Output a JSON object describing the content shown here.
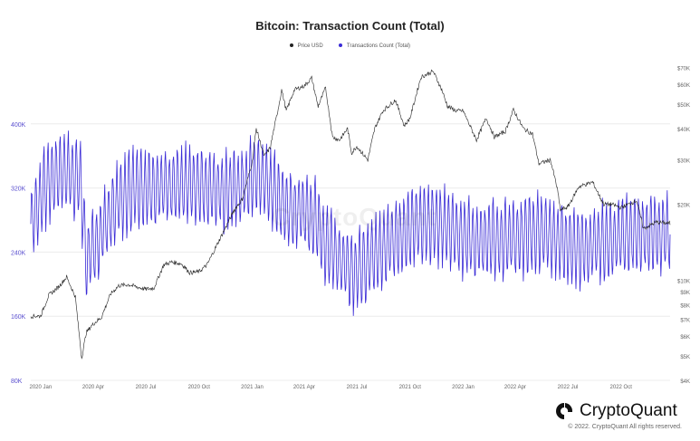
{
  "header": {
    "title": "Bitcoin: Transaction Count (Total)"
  },
  "legend": {
    "price_label": "Price USD",
    "tx_label": "Transactions Count (Total)"
  },
  "branding": {
    "logo_text": "CryptoQuant",
    "watermark": "CryptoQuant",
    "copyright": "© 2022. CryptoQuant All rights reserved."
  },
  "colors": {
    "price": "#222222",
    "transactions": "#3a2bd6",
    "left_axis_text": "#5a4fcf",
    "grid": "#ececec"
  },
  "chart_data": {
    "type": "line",
    "title": "Bitcoin: Transaction Count (Total)",
    "grid": true,
    "legend_position": "top-center",
    "x_ticks": [
      "2020 Jan",
      "2020 Apr",
      "2020 Jul",
      "2020 Oct",
      "2021 Jan",
      "2021 Apr",
      "2021 Jul",
      "2021 Oct",
      "2022 Jan",
      "2022 Apr",
      "2022 Jul",
      "2022 Oct"
    ],
    "x_range": [
      "2019-12-15",
      "2022-12-25"
    ],
    "y_left": {
      "scale": "linear",
      "range": [
        80000,
        480000
      ],
      "ticks": [
        {
          "value": 80000,
          "label": "80K"
        },
        {
          "value": 160000,
          "label": "160K"
        },
        {
          "value": 240000,
          "label": "240K"
        },
        {
          "value": 320000,
          "label": "320K"
        },
        {
          "value": 400000,
          "label": "400K"
        }
      ]
    },
    "y_right": {
      "scale": "log",
      "range": [
        4000,
        75000
      ],
      "ticks": [
        {
          "value": 4000,
          "label": "$4K"
        },
        {
          "value": 5000,
          "label": "$5K"
        },
        {
          "value": 6000,
          "label": "$6K"
        },
        {
          "value": 7000,
          "label": "$7K"
        },
        {
          "value": 8000,
          "label": "$8K"
        },
        {
          "value": 9000,
          "label": "$9K"
        },
        {
          "value": 10000,
          "label": "$10K"
        },
        {
          "value": 20000,
          "label": "$20K"
        },
        {
          "value": 30000,
          "label": "$30K"
        },
        {
          "value": 40000,
          "label": "$40K"
        },
        {
          "value": 50000,
          "label": "$50K"
        },
        {
          "value": 60000,
          "label": "$60K"
        },
        {
          "value": 70000,
          "label": "$70K"
        }
      ]
    },
    "series": [
      {
        "name": "Price USD",
        "axis": "right",
        "points": [
          [
            "2019-12-15",
            7200
          ],
          [
            "2020-01-01",
            7200
          ],
          [
            "2020-01-15",
            8700
          ],
          [
            "2020-02-01",
            9400
          ],
          [
            "2020-02-15",
            10300
          ],
          [
            "2020-03-01",
            8600
          ],
          [
            "2020-03-12",
            4900
          ],
          [
            "2020-03-20",
            6200
          ],
          [
            "2020-04-01",
            6700
          ],
          [
            "2020-04-15",
            7100
          ],
          [
            "2020-05-01",
            8800
          ],
          [
            "2020-05-15",
            9500
          ],
          [
            "2020-06-01",
            9600
          ],
          [
            "2020-06-15",
            9400
          ],
          [
            "2020-07-01",
            9200
          ],
          [
            "2020-07-15",
            9300
          ],
          [
            "2020-08-01",
            11500
          ],
          [
            "2020-08-15",
            11800
          ],
          [
            "2020-09-01",
            11600
          ],
          [
            "2020-09-15",
            10700
          ],
          [
            "2020-10-01",
            10800
          ],
          [
            "2020-10-15",
            11500
          ],
          [
            "2020-11-01",
            13800
          ],
          [
            "2020-11-15",
            16000
          ],
          [
            "2020-12-01",
            19000
          ],
          [
            "2020-12-15",
            21000
          ],
          [
            "2021-01-01",
            29400
          ],
          [
            "2021-01-08",
            40000
          ],
          [
            "2021-01-22",
            31000
          ],
          [
            "2021-02-01",
            33500
          ],
          [
            "2021-02-15",
            48000
          ],
          [
            "2021-02-21",
            57000
          ],
          [
            "2021-03-01",
            47000
          ],
          [
            "2021-03-15",
            57000
          ],
          [
            "2021-04-01",
            59000
          ],
          [
            "2021-04-14",
            63500
          ],
          [
            "2021-04-25",
            49000
          ],
          [
            "2021-05-08",
            58000
          ],
          [
            "2021-05-20",
            37000
          ],
          [
            "2021-06-01",
            36000
          ],
          [
            "2021-06-15",
            40000
          ],
          [
            "2021-06-22",
            32000
          ],
          [
            "2021-07-01",
            34000
          ],
          [
            "2021-07-20",
            30000
          ],
          [
            "2021-08-01",
            40000
          ],
          [
            "2021-08-15",
            47000
          ],
          [
            "2021-09-06",
            52000
          ],
          [
            "2021-09-21",
            41000
          ],
          [
            "2021-10-01",
            44000
          ],
          [
            "2021-10-20",
            64000
          ],
          [
            "2021-11-10",
            67500
          ],
          [
            "2021-11-25",
            57000
          ],
          [
            "2021-12-05",
            49000
          ],
          [
            "2021-12-20",
            47000
          ],
          [
            "2022-01-01",
            47000
          ],
          [
            "2022-01-24",
            36000
          ],
          [
            "2022-02-10",
            44000
          ],
          [
            "2022-02-24",
            37000
          ],
          [
            "2022-03-15",
            39000
          ],
          [
            "2022-03-29",
            47500
          ],
          [
            "2022-04-15",
            40000
          ],
          [
            "2022-05-01",
            38000
          ],
          [
            "2022-05-12",
            29000
          ],
          [
            "2022-06-01",
            30000
          ],
          [
            "2022-06-13",
            23000
          ],
          [
            "2022-06-18",
            19000
          ],
          [
            "2022-07-01",
            19500
          ],
          [
            "2022-07-20",
            23500
          ],
          [
            "2022-08-13",
            24500
          ],
          [
            "2022-09-01",
            20000
          ],
          [
            "2022-09-15",
            20000
          ],
          [
            "2022-10-01",
            19400
          ],
          [
            "2022-10-28",
            20700
          ],
          [
            "2022-11-09",
            16000
          ],
          [
            "2022-12-01",
            17000
          ],
          [
            "2022-12-25",
            16800
          ]
        ]
      },
      {
        "name": "Transactions Count (Total)",
        "axis": "left",
        "points": [
          [
            "2019-12-15",
            275000
          ],
          [
            "2020-01-15",
            330000
          ],
          [
            "2020-02-15",
            340000
          ],
          [
            "2020-03-10",
            330000
          ],
          [
            "2020-03-20",
            230000
          ],
          [
            "2020-04-15",
            265000
          ],
          [
            "2020-05-15",
            305000
          ],
          [
            "2020-06-15",
            320000
          ],
          [
            "2020-07-15",
            318000
          ],
          [
            "2020-08-15",
            322000
          ],
          [
            "2020-09-15",
            325000
          ],
          [
            "2020-10-15",
            320000
          ],
          [
            "2020-11-15",
            318000
          ],
          [
            "2020-12-15",
            322000
          ],
          [
            "2021-01-10",
            340000
          ],
          [
            "2021-02-01",
            320000
          ],
          [
            "2021-03-01",
            295000
          ],
          [
            "2021-04-01",
            290000
          ],
          [
            "2021-04-20",
            280000
          ],
          [
            "2021-05-10",
            250000
          ],
          [
            "2021-06-01",
            230000
          ],
          [
            "2021-06-25",
            215000
          ],
          [
            "2021-07-15",
            225000
          ],
          [
            "2021-08-15",
            245000
          ],
          [
            "2021-09-15",
            260000
          ],
          [
            "2021-10-15",
            275000
          ],
          [
            "2021-11-15",
            275000
          ],
          [
            "2021-12-15",
            265000
          ],
          [
            "2022-01-15",
            255000
          ],
          [
            "2022-02-15",
            255000
          ],
          [
            "2022-03-15",
            255000
          ],
          [
            "2022-04-15",
            260000
          ],
          [
            "2022-05-15",
            265000
          ],
          [
            "2022-06-15",
            255000
          ],
          [
            "2022-07-15",
            245000
          ],
          [
            "2022-08-15",
            250000
          ],
          [
            "2022-09-15",
            255000
          ],
          [
            "2022-10-15",
            260000
          ],
          [
            "2022-11-15",
            265000
          ],
          [
            "2022-12-25",
            262000
          ]
        ],
        "weekly_amplitude": 90000
      }
    ]
  }
}
